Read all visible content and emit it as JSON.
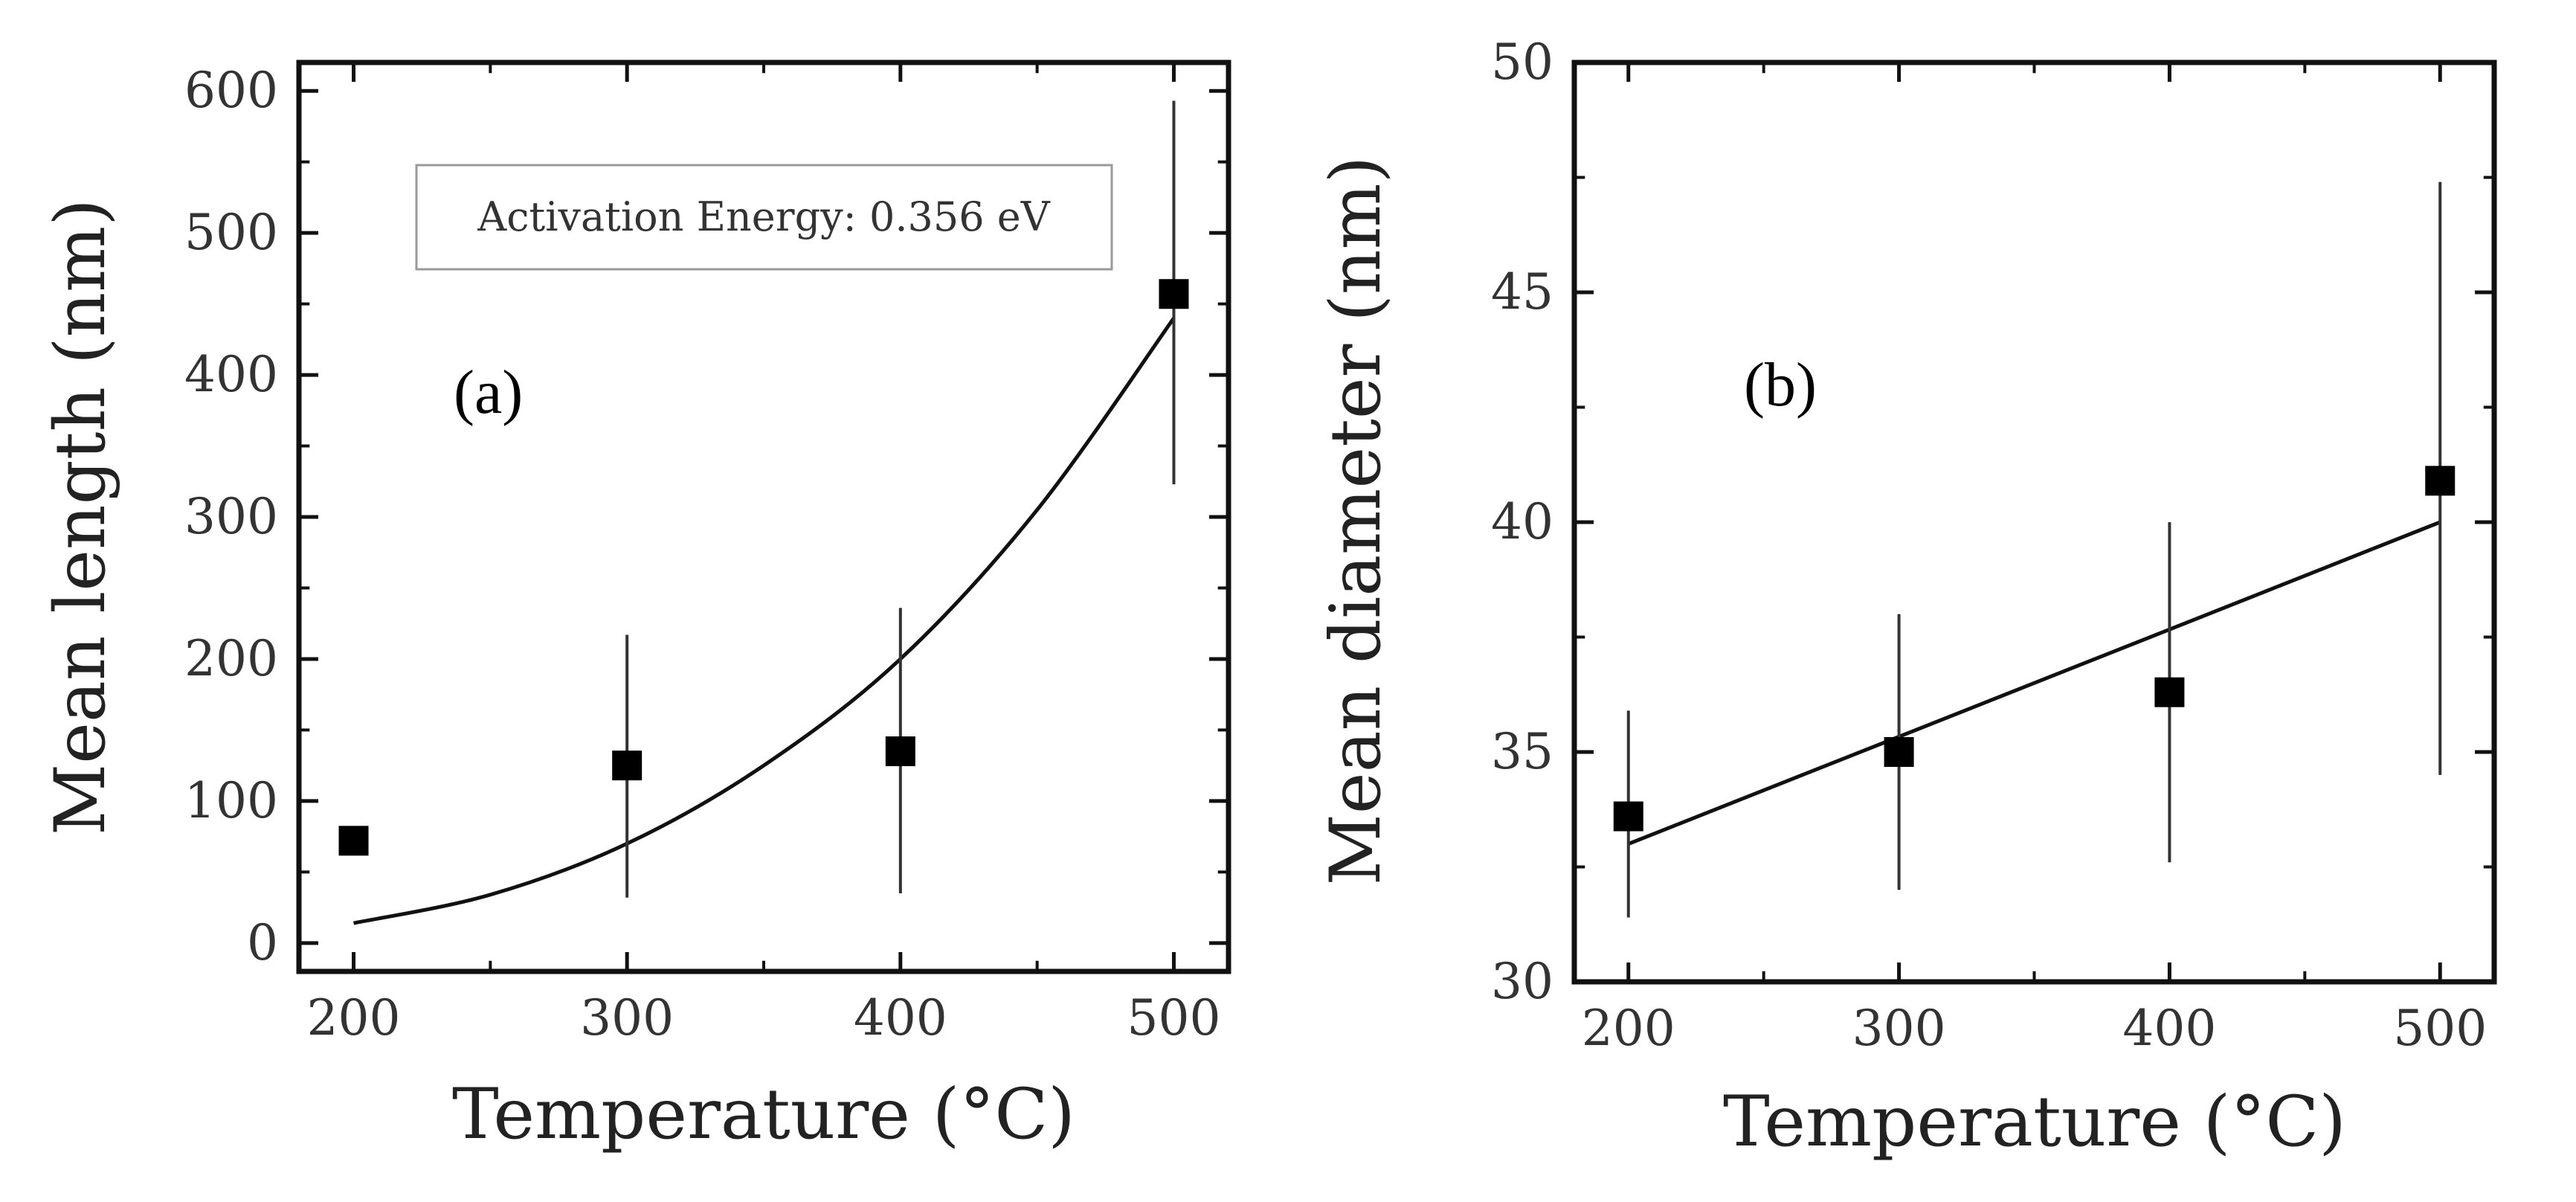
{
  "chart_data": [
    {
      "type": "scatter",
      "panel_label": "(a)",
      "xlabel": "Temperature (°C)",
      "ylabel": "Mean length (nm)",
      "xlim": [
        180,
        520
      ],
      "ylim": [
        -20,
        620
      ],
      "xticks": [
        200,
        300,
        400,
        500
      ],
      "xtick_labels": [
        "200",
        "300",
        "400",
        "500"
      ],
      "yticks": [
        0,
        100,
        200,
        300,
        400,
        500,
        600
      ],
      "ytick_labels": [
        "0",
        "100",
        "200",
        "300",
        "400",
        "500",
        "600"
      ],
      "annotation": "Activation Energy: 0.356 eV",
      "points": [
        {
          "x": 200,
          "y": 72,
          "err_low": 62,
          "err_high": 82
        },
        {
          "x": 300,
          "y": 125,
          "err_low": 32,
          "err_high": 217
        },
        {
          "x": 400,
          "y": 135,
          "err_low": 35,
          "err_high": 236
        },
        {
          "x": 500,
          "y": 457,
          "err_low": 323,
          "err_high": 593
        }
      ],
      "fit": {
        "type": "arrhenius",
        "x": [
          200,
          250,
          300,
          350,
          400,
          450,
          500
        ],
        "y": [
          14,
          34,
          70,
          125,
          200,
          305,
          440
        ]
      }
    },
    {
      "type": "scatter",
      "panel_label": "(b)",
      "xlabel": "Temperature (°C)",
      "ylabel": "Mean diameter (nm)",
      "xlim": [
        180,
        520
      ],
      "ylim": [
        30,
        50
      ],
      "xticks": [
        200,
        300,
        400,
        500
      ],
      "xtick_labels": [
        "200",
        "300",
        "400",
        "500"
      ],
      "yticks": [
        30,
        35,
        40,
        45,
        50
      ],
      "ytick_labels": [
        "30",
        "35",
        "40",
        "45",
        "50"
      ],
      "points": [
        {
          "x": 200,
          "y": 33.6,
          "err_low": 31.4,
          "err_high": 35.9
        },
        {
          "x": 300,
          "y": 35.0,
          "err_low": 32.0,
          "err_high": 38.0
        },
        {
          "x": 400,
          "y": 36.3,
          "err_low": 32.6,
          "err_high": 40.0
        },
        {
          "x": 500,
          "y": 40.9,
          "err_low": 34.5,
          "err_high": 47.4
        }
      ],
      "fit": {
        "type": "linear",
        "x": [
          200,
          500
        ],
        "y": [
          33.0,
          40.0
        ]
      }
    }
  ]
}
